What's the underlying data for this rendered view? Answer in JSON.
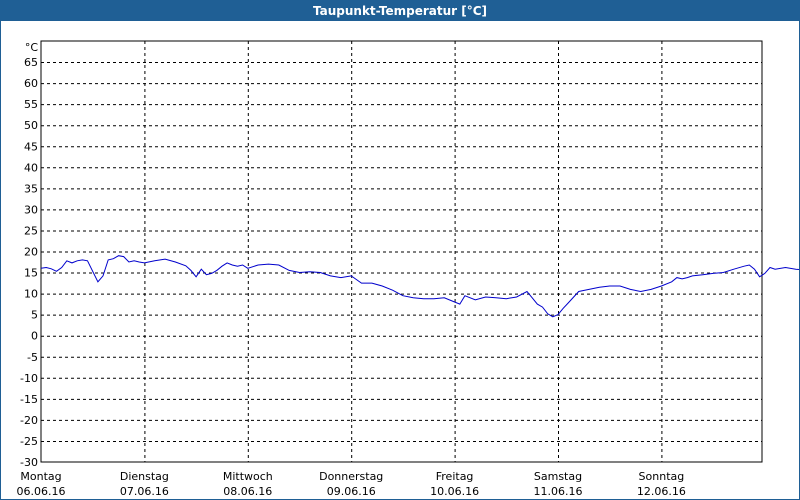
{
  "window": {
    "title": "Taupunkt-Temperatur [°C]"
  },
  "chart_data": {
    "type": "line",
    "title": "Taupunkt-Temperatur [°C]",
    "ylabel": "°C",
    "ylim": [
      -30,
      70
    ],
    "y_ticks": [
      65,
      60,
      55,
      50,
      45,
      40,
      35,
      30,
      25,
      20,
      15,
      10,
      5,
      0,
      -5,
      -10,
      -15,
      -20,
      -25,
      -30
    ],
    "x_range_days": [
      0,
      7
    ],
    "x_tick_labels": [
      {
        "day": "Montag",
        "date": "06.06.16"
      },
      {
        "day": "Dienstag",
        "date": "07.06.16"
      },
      {
        "day": "Mittwoch",
        "date": "08.06.16"
      },
      {
        "day": "Donnerstag",
        "date": "09.06.16"
      },
      {
        "day": "Freitag",
        "date": "10.06.16"
      },
      {
        "day": "Samstag",
        "date": "11.06.16"
      },
      {
        "day": "Sonntag",
        "date": "12.06.16"
      }
    ],
    "grid": true,
    "line_color": "#0000cc",
    "series": [
      {
        "values": [
          [
            0.0,
            16.0
          ],
          [
            0.05,
            16.2
          ],
          [
            0.1,
            15.9
          ],
          [
            0.15,
            15.3
          ],
          [
            0.2,
            16.2
          ],
          [
            0.25,
            17.8
          ],
          [
            0.3,
            17.3
          ],
          [
            0.35,
            17.8
          ],
          [
            0.4,
            18.0
          ],
          [
            0.45,
            17.8
          ],
          [
            0.55,
            12.8
          ],
          [
            0.6,
            14.2
          ],
          [
            0.65,
            18.0
          ],
          [
            0.7,
            18.3
          ],
          [
            0.75,
            19.0
          ],
          [
            0.8,
            18.8
          ],
          [
            0.85,
            17.5
          ],
          [
            0.9,
            17.8
          ],
          [
            0.95,
            17.5
          ],
          [
            1.0,
            17.3
          ],
          [
            1.1,
            17.8
          ],
          [
            1.2,
            18.2
          ],
          [
            1.3,
            17.5
          ],
          [
            1.4,
            16.6
          ],
          [
            1.45,
            15.5
          ],
          [
            1.5,
            14.0
          ],
          [
            1.55,
            15.8
          ],
          [
            1.6,
            14.5
          ],
          [
            1.65,
            14.8
          ],
          [
            1.7,
            15.5
          ],
          [
            1.75,
            16.5
          ],
          [
            1.8,
            17.3
          ],
          [
            1.85,
            16.8
          ],
          [
            1.9,
            16.5
          ],
          [
            1.95,
            16.8
          ],
          [
            2.0,
            16.0
          ],
          [
            2.1,
            16.8
          ],
          [
            2.2,
            17.0
          ],
          [
            2.3,
            16.8
          ],
          [
            2.4,
            15.5
          ],
          [
            2.5,
            15.0
          ],
          [
            2.6,
            15.2
          ],
          [
            2.7,
            15.0
          ],
          [
            2.8,
            14.2
          ],
          [
            2.9,
            13.8
          ],
          [
            3.0,
            14.2
          ],
          [
            3.1,
            12.5
          ],
          [
            3.2,
            12.5
          ],
          [
            3.3,
            11.8
          ],
          [
            3.4,
            10.8
          ],
          [
            3.5,
            9.5
          ],
          [
            3.6,
            9.0
          ],
          [
            3.7,
            8.8
          ],
          [
            3.8,
            8.8
          ],
          [
            3.9,
            9.0
          ],
          [
            4.0,
            8.0
          ],
          [
            4.05,
            7.5
          ],
          [
            4.1,
            9.5
          ],
          [
            4.2,
            8.5
          ],
          [
            4.3,
            9.2
          ],
          [
            4.4,
            9.0
          ],
          [
            4.5,
            8.8
          ],
          [
            4.6,
            9.2
          ],
          [
            4.7,
            10.5
          ],
          [
            4.75,
            9.0
          ],
          [
            4.8,
            7.5
          ],
          [
            4.85,
            6.8
          ],
          [
            4.9,
            5.2
          ],
          [
            4.95,
            4.5
          ],
          [
            5.0,
            5.0
          ],
          [
            5.05,
            6.5
          ],
          [
            5.1,
            7.8
          ],
          [
            5.2,
            10.5
          ],
          [
            5.3,
            11.0
          ],
          [
            5.4,
            11.5
          ],
          [
            5.5,
            11.8
          ],
          [
            5.6,
            11.8
          ],
          [
            5.7,
            11.0
          ],
          [
            5.8,
            10.5
          ],
          [
            5.9,
            11.0
          ],
          [
            6.0,
            11.8
          ],
          [
            6.1,
            12.8
          ],
          [
            6.15,
            13.8
          ],
          [
            6.2,
            13.5
          ],
          [
            6.25,
            13.8
          ],
          [
            6.3,
            14.2
          ],
          [
            6.4,
            14.5
          ],
          [
            6.5,
            14.8
          ],
          [
            6.6,
            15.0
          ],
          [
            6.7,
            15.8
          ],
          [
            6.8,
            16.5
          ],
          [
            6.85,
            16.8
          ],
          [
            6.9,
            15.8
          ],
          [
            6.95,
            14.0
          ],
          [
            7.0,
            14.8
          ],
          [
            7.05,
            16.2
          ],
          [
            7.1,
            15.8
          ],
          [
            7.2,
            16.2
          ],
          [
            7.3,
            15.8
          ],
          [
            7.4,
            15.6
          ]
        ]
      }
    ]
  }
}
